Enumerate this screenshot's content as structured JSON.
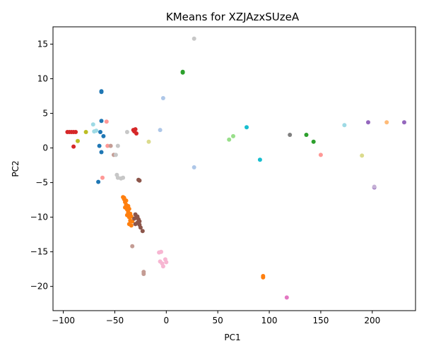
{
  "chart_data": {
    "type": "scatter",
    "title": "KMeans for XZJAzxSUzeA",
    "xlabel": "PC1",
    "ylabel": "PC2",
    "xlim": [
      -110,
      242
    ],
    "ylim": [
      -23.5,
      17.5
    ],
    "xticks": [
      -100,
      -50,
      0,
      50,
      100,
      150,
      200
    ],
    "yticks": [
      -20,
      -15,
      -10,
      -5,
      0,
      5,
      10,
      15
    ],
    "xtick_labels": [
      "−100",
      "−50",
      "0",
      "50",
      "100",
      "150",
      "200"
    ],
    "ytick_labels": [
      "−20",
      "−15",
      "−10",
      "−5",
      "0",
      "5",
      "10",
      "15"
    ],
    "grid": false,
    "legend": "none",
    "series": [
      {
        "color": "#1f77b4",
        "points": [
          [
            -63,
            8.1
          ],
          [
            -63,
            8.2
          ],
          [
            -63,
            3.9
          ],
          [
            -61,
            1.7
          ],
          [
            -64,
            2.3
          ],
          [
            -65,
            0.3
          ],
          [
            -63,
            -0.6
          ],
          [
            -66,
            -4.9
          ]
        ]
      },
      {
        "color": "#aec7e8",
        "points": [
          [
            -3,
            7.2
          ],
          [
            -6,
            2.6
          ],
          [
            27,
            -2.8
          ]
        ]
      },
      {
        "color": "#ff7f0e",
        "points": [
          [
            -42,
            -7.1
          ],
          [
            -41,
            -7.4
          ],
          [
            -40,
            -7.8
          ],
          [
            -39,
            -8.2
          ],
          [
            -40,
            -8.6
          ],
          [
            -38,
            -8.9
          ],
          [
            -37,
            -9.3
          ],
          [
            -38,
            -9.7
          ],
          [
            -36,
            -10.0
          ],
          [
            -35,
            -10.5
          ],
          [
            -36,
            -11.0
          ],
          [
            -34,
            -11.2
          ],
          [
            -33,
            -10.6
          ],
          [
            -35,
            -9.5
          ],
          [
            -37,
            -8.4
          ],
          [
            -39,
            -7.6
          ],
          [
            -41,
            -7.2
          ],
          [
            -36,
            -8.8
          ],
          [
            -34,
            -9.9
          ],
          [
            94,
            -18.5
          ],
          [
            94,
            -18.7
          ]
        ]
      },
      {
        "color": "#ffbb78",
        "points": [
          [
            214,
            3.7
          ]
        ]
      },
      {
        "color": "#2ca02c",
        "points": [
          [
            16,
            10.9
          ],
          [
            16,
            11.0
          ],
          [
            136,
            1.9
          ],
          [
            143,
            0.9
          ]
        ]
      },
      {
        "color": "#98df8a",
        "points": [
          [
            61,
            1.2
          ],
          [
            65,
            1.7
          ]
        ]
      },
      {
        "color": "#d62728",
        "points": [
          [
            -96,
            2.3
          ],
          [
            -94,
            2.3
          ],
          [
            -92,
            2.3
          ],
          [
            -90,
            2.3
          ],
          [
            -88,
            2.3
          ],
          [
            -90,
            0.2
          ],
          [
            -32,
            2.6
          ],
          [
            -30,
            2.7
          ],
          [
            -29,
            2.1
          ],
          [
            -31,
            2.4
          ]
        ]
      },
      {
        "color": "#ff9896",
        "points": [
          [
            -58,
            3.8
          ],
          [
            -57,
            0.3
          ],
          [
            -62,
            -4.3
          ],
          [
            150,
            -1.0
          ]
        ]
      },
      {
        "color": "#9467bd",
        "points": [
          [
            196,
            3.7
          ],
          [
            231,
            3.7
          ],
          [
            202,
            -5.7
          ]
        ]
      },
      {
        "color": "#c5b0d5",
        "points": [
          [
            202,
            -5.6
          ]
        ]
      },
      {
        "color": "#8c564b",
        "points": [
          [
            -27,
            -4.6
          ],
          [
            -26,
            -4.7
          ],
          [
            -30,
            -9.6
          ],
          [
            -29,
            -10.0
          ],
          [
            -27,
            -10.3
          ],
          [
            -28,
            -10.8
          ],
          [
            -26,
            -11.1
          ],
          [
            -25,
            -11.5
          ],
          [
            -23,
            -12.0
          ],
          [
            -30,
            -11.0
          ],
          [
            -31,
            -10.2
          ],
          [
            -28,
            -9.9
          ],
          [
            -26,
            -10.6
          ]
        ]
      },
      {
        "color": "#c49c94",
        "points": [
          [
            -54,
            0.3
          ],
          [
            -51,
            -1.0
          ],
          [
            -33,
            -14.2
          ],
          [
            -22,
            -17.9
          ],
          [
            -22,
            -18.2
          ]
        ]
      },
      {
        "color": "#e377c2",
        "points": [
          [
            117,
            -21.6
          ]
        ]
      },
      {
        "color": "#f7b6d2",
        "points": [
          [
            -7,
            -15.1
          ],
          [
            -5,
            -15.0
          ],
          [
            -6,
            -16.4
          ],
          [
            -4,
            -16.7
          ],
          [
            -3,
            -17.1
          ],
          [
            -1,
            -16.1
          ],
          [
            0,
            -16.5
          ]
        ]
      },
      {
        "color": "#7f7f7f",
        "points": [
          [
            120,
            1.9
          ]
        ]
      },
      {
        "color": "#c7c7c7",
        "points": [
          [
            27,
            15.8
          ],
          [
            -38,
            2.3
          ],
          [
            -47,
            0.3
          ],
          [
            -49,
            -1.0
          ],
          [
            -48,
            -3.9
          ],
          [
            -47,
            -4.3
          ],
          [
            -44,
            -4.4
          ],
          [
            -42,
            -4.3
          ]
        ]
      },
      {
        "color": "#bcbd22",
        "points": [
          [
            -78,
            2.3
          ],
          [
            -86,
            1.0
          ]
        ]
      },
      {
        "color": "#dbdb8d",
        "points": [
          [
            -17,
            0.9
          ],
          [
            190,
            -1.1
          ]
        ]
      },
      {
        "color": "#17becf",
        "points": [
          [
            78,
            3.0
          ],
          [
            91,
            -1.7
          ]
        ]
      },
      {
        "color": "#9edae5",
        "points": [
          [
            -71,
            3.4
          ],
          [
            -70,
            2.4
          ],
          [
            -68,
            2.5
          ],
          [
            173,
            3.3
          ]
        ]
      }
    ]
  }
}
